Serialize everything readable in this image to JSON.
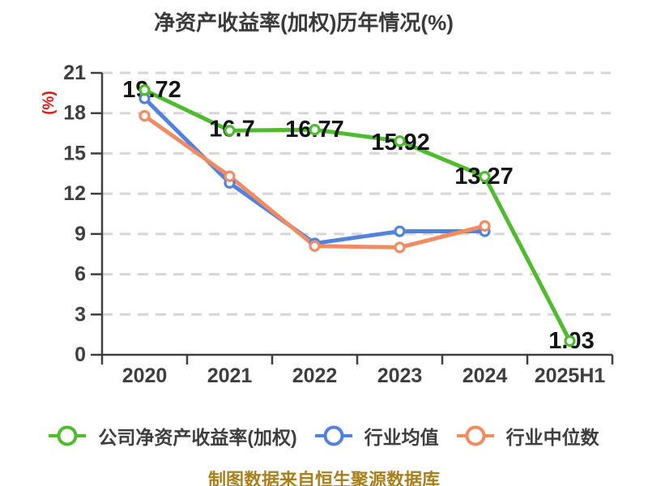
{
  "title": "净资产收益率(加权)历年情况(%)",
  "y_axis_label": "(%)",
  "footer": "制图数据来自恒生聚源数据库",
  "chart_data": {
    "type": "line",
    "title": "净资产收益率(加权)历年情况(%)",
    "ylabel": "(%)",
    "xlabel": "",
    "categories": [
      "2020",
      "2021",
      "2022",
      "2023",
      "2024",
      "2025H1"
    ],
    "series": [
      {
        "name": "公司净资产收益率(加权)",
        "color": "#4FBB2F",
        "values": [
          19.72,
          16.7,
          16.77,
          15.92,
          13.27,
          1.03
        ],
        "show_labels": true
      },
      {
        "name": "行业均值",
        "color": "#5282E0",
        "values": [
          19.1,
          12.8,
          8.3,
          9.2,
          9.2,
          null
        ],
        "show_labels": false
      },
      {
        "name": "行业中位数",
        "color": "#F28B61",
        "values": [
          17.8,
          13.3,
          8.1,
          8.0,
          9.6,
          null
        ],
        "show_labels": false
      }
    ],
    "ylim": [
      0,
      21
    ],
    "yticks": [
      0,
      3,
      6,
      9,
      12,
      15,
      18,
      21
    ],
    "grid": "horizontal-dashed",
    "legend_position": "bottom",
    "marker": "white-filled-circle"
  },
  "colors": {
    "background": "#FFFFFF",
    "title_text": "#3A3A3A",
    "axis": "#3F3F3F",
    "tick_label": "#3E3E3E",
    "gridline": "#D6D6D6",
    "data_label": "#141414",
    "y_axis_label_text": "#E81414",
    "footer_text": "#A9801B"
  }
}
